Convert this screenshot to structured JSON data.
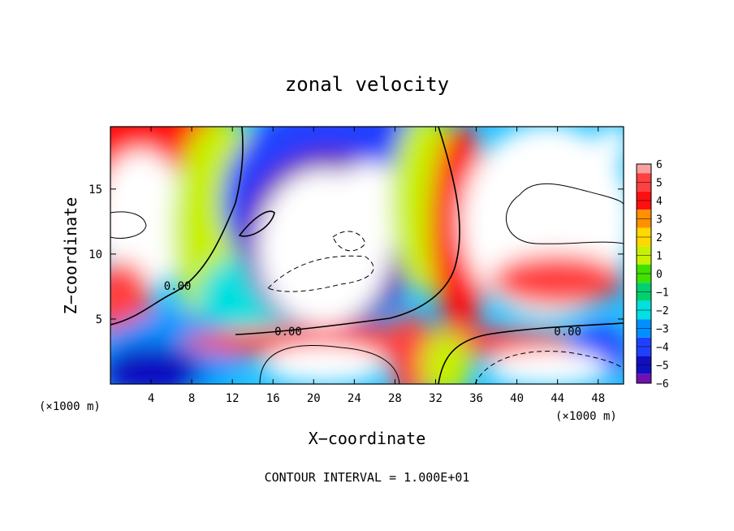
{
  "chart_data": {
    "type": "heatmap",
    "title": "zonal velocity",
    "xlabel": "X−coordinate",
    "ylabel": "Z−coordinate",
    "x_unit_left": "(×1000 m)",
    "x_unit_right": "(×1000 m)",
    "x_ticks": [
      "4",
      "8",
      "12",
      "16",
      "20",
      "24",
      "28",
      "32",
      "36",
      "40",
      "44",
      "48"
    ],
    "x_tick_values": [
      4,
      8,
      12,
      16,
      20,
      24,
      28,
      32,
      36,
      40,
      44,
      48
    ],
    "y_ticks": [
      "5",
      "10",
      "15"
    ],
    "y_tick_values": [
      5,
      10,
      15
    ],
    "xlim": [
      0,
      50.5
    ],
    "ylim": [
      0,
      19.8
    ],
    "colorbar": {
      "levels": [
        "6",
        "5",
        "4",
        "3",
        "2",
        "1",
        "0",
        "−1",
        "−2",
        "−3",
        "−4",
        "−5",
        "−6"
      ],
      "colors": [
        "#f7a0a0",
        "#ff4040",
        "#ff1010",
        "#ff9000",
        "#ffd800",
        "#c8f000",
        "#40e000",
        "#00d070",
        "#00e0e0",
        "#0090ff",
        "#2040ff",
        "#1010c0",
        "#7010b0"
      ]
    },
    "contour_labels": [
      {
        "text": "0.00",
        "x": 6.6,
        "y": 7.5
      },
      {
        "text": "0.00",
        "x": 17.5,
        "y": 4.0
      },
      {
        "text": "0.00",
        "x": 45.0,
        "y": 4.0
      }
    ],
    "footer": "CONTOUR INTERVAL = 1.000E+01",
    "blobs": [
      {
        "value": 4,
        "x": 4.5,
        "y": 15.5,
        "rx": 9.0,
        "ry": 7.0
      },
      {
        "value": 6,
        "x": 3.0,
        "y": 12.5,
        "rx": 4.5,
        "ry": 5.5
      },
      {
        "value": 5,
        "x": 1.0,
        "y": 6.5,
        "rx": 3.0,
        "ry": 3.0
      },
      {
        "value": 1,
        "x": 11.0,
        "y": 12.0,
        "rx": 5.0,
        "ry": 8.5
      },
      {
        "value": -2,
        "x": 14.0,
        "y": 6.5,
        "rx": 5.5,
        "ry": 3.5
      },
      {
        "value": 0,
        "x": 25.0,
        "y": 17.5,
        "rx": 6.0,
        "ry": 3.5
      },
      {
        "value": -4,
        "x": 23.0,
        "y": 14.0,
        "rx": 12.0,
        "ry": 8.0
      },
      {
        "value": -6,
        "x": 21.5,
        "y": 11.0,
        "rx": 8.5,
        "ry": 7.0
      },
      {
        "value": 6,
        "x": 21.0,
        "y": 10.5,
        "rx": 6.5,
        "ry": 6.0
      },
      {
        "value": 6,
        "x": 25.5,
        "y": 13.5,
        "rx": 4.0,
        "ry": 3.5
      },
      {
        "value": 1,
        "x": 31.0,
        "y": 14.0,
        "rx": 3.5,
        "ry": 7.0
      },
      {
        "value": 4,
        "x": 34.5,
        "y": 12.0,
        "rx": 3.0,
        "ry": 8.0
      },
      {
        "value": 6,
        "x": 43.0,
        "y": 12.5,
        "rx": 8.5,
        "ry": 7.5
      },
      {
        "value": 5,
        "x": 44.0,
        "y": 8.0,
        "rx": 6.5,
        "ry": 2.0
      },
      {
        "value": 6,
        "x": 49.5,
        "y": 18.5,
        "rx": 1.5,
        "ry": 1.5
      },
      {
        "value": -3,
        "x": 6.0,
        "y": 2.5,
        "rx": 7.0,
        "ry": 3.0
      },
      {
        "value": -5,
        "x": 4.0,
        "y": 1.0,
        "rx": 5.0,
        "ry": 2.0
      },
      {
        "value": 5,
        "x": 27.0,
        "y": 3.2,
        "rx": 20.0,
        "ry": 1.3
      },
      {
        "value": 5,
        "x": 29.5,
        "y": 2.0,
        "rx": 2.0,
        "ry": 3.5
      },
      {
        "value": 6,
        "x": 21.0,
        "y": 1.5,
        "rx": 6.0,
        "ry": 1.5
      },
      {
        "value": 1,
        "x": 33.0,
        "y": 1.5,
        "rx": 2.5,
        "ry": 2.5
      },
      {
        "value": -4,
        "x": 48.0,
        "y": 2.5,
        "rx": 3.0,
        "ry": 2.0
      },
      {
        "value": 6,
        "x": 43.0,
        "y": 1.2,
        "rx": 6.0,
        "ry": 1.4
      }
    ]
  }
}
